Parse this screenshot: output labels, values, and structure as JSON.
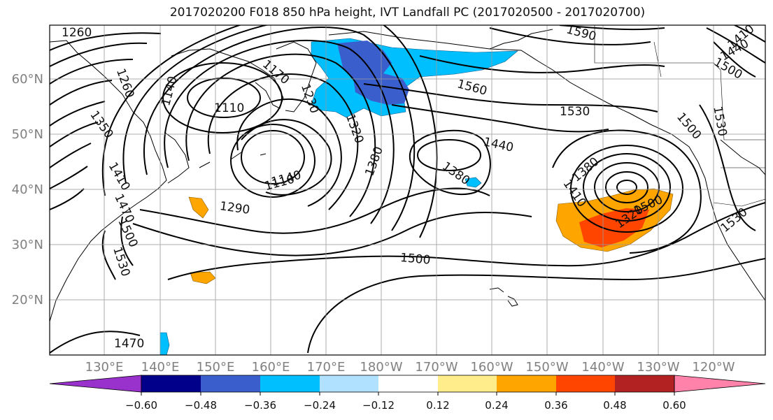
{
  "title": "2017020200 F018 850 hPa height, IVT Landfall PC (2017020500 - 2017020700)",
  "lat_labels": [
    "60°N",
    "50°N",
    "40°N",
    "30°N",
    "20°N"
  ],
  "lon_labels": [
    "130°E",
    "140°E",
    "150°E",
    "160°E",
    "170°E",
    "180°W",
    "170°W",
    "160°W",
    "150°W",
    "140°W",
    "130°W",
    "120°W"
  ],
  "contour_labels": [
    "1260",
    "1260",
    "1350",
    "1410",
    "1470",
    "1500",
    "1530",
    "1140",
    "1110",
    "1170",
    "1230",
    "1320",
    "1380",
    "1110",
    "1140",
    "1290",
    "1590",
    "1560",
    "1530",
    "1440",
    "1380",
    "1500",
    "1530",
    "1500",
    "1380",
    "1410",
    "1320",
    "1530",
    "1410",
    "1440",
    "1500",
    "1470",
    "1500"
  ],
  "colorbar": {
    "tick_labels": [
      "−0.60",
      "−0.48",
      "−0.36",
      "−0.24",
      "−0.12",
      "0.12",
      "0.24",
      "0.36",
      "0.48",
      "0.60"
    ],
    "colors": [
      "#9932cc",
      "#00008b",
      "#3a5fcd",
      "#00bfff",
      "#b0e2ff",
      "#ffffff",
      "#ffec8b",
      "#ffa500",
      "#ff4500",
      "#b22222",
      "#ff82ab"
    ]
  },
  "shading_colors": {
    "strong_negative": "#3a5fcd",
    "negative": "#00bfff",
    "positive": "#ffa500",
    "strong_positive": "#ff4500"
  }
}
